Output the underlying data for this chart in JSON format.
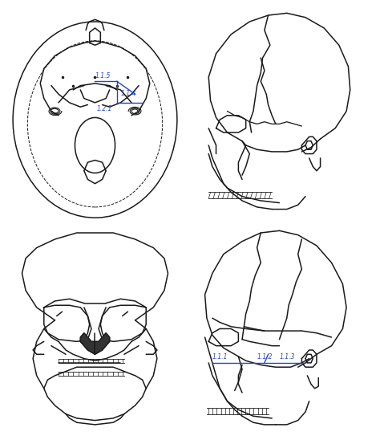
{
  "background_color": "#ffffff",
  "figure_width": 4.74,
  "figure_height": 5.53,
  "dpi": 100,
  "lc": "#1a1a1a",
  "lw": 1.1,
  "ac": "#2244cc",
  "alw": 1.0,
  "fs": 5.5
}
